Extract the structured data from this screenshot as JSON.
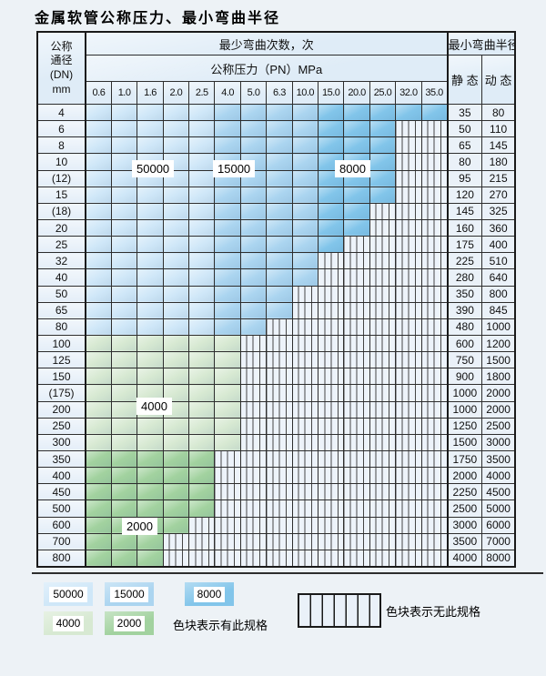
{
  "title": "金属软管公称压力、最小弯曲半径",
  "table": {
    "dn_header_lines": [
      "公称",
      "通径",
      "(DN)",
      "mm"
    ],
    "bend_cycles_header": "最少弯曲次数，次",
    "pressure_header": "公称压力（PN）MPa",
    "radius_header": "最小弯曲半径",
    "static_label": "静 态",
    "dynamic_label": "动 态",
    "pressure_columns": [
      "0.6",
      "1.0",
      "1.6",
      "2.0",
      "2.5",
      "4.0",
      "5.0",
      "6.3",
      "10.0",
      "15.0",
      "20.0",
      "25.0",
      "32.0",
      "35.0"
    ],
    "rows": [
      {
        "dn": "4",
        "colored_through": "35.0",
        "fill": "blue",
        "static": "35",
        "dynamic": "80"
      },
      {
        "dn": "6",
        "colored_through": "25.0",
        "fill": "blue",
        "static": "50",
        "dynamic": "110"
      },
      {
        "dn": "8",
        "colored_through": "25.0",
        "fill": "blue",
        "static": "65",
        "dynamic": "145"
      },
      {
        "dn": "10",
        "colored_through": "25.0",
        "fill": "blue",
        "static": "80",
        "dynamic": "180"
      },
      {
        "dn": "(12)",
        "colored_through": "25.0",
        "fill": "blue",
        "static": "95",
        "dynamic": "215"
      },
      {
        "dn": "15",
        "colored_through": "25.0",
        "fill": "blue",
        "static": "120",
        "dynamic": "270"
      },
      {
        "dn": "(18)",
        "colored_through": "20.0",
        "fill": "blue",
        "static": "145",
        "dynamic": "325"
      },
      {
        "dn": "20",
        "colored_through": "20.0",
        "fill": "blue",
        "static": "160",
        "dynamic": "360"
      },
      {
        "dn": "25",
        "colored_through": "15.0",
        "fill": "blue",
        "static": "175",
        "dynamic": "400"
      },
      {
        "dn": "32",
        "colored_through": "10.0",
        "fill": "blue",
        "static": "225",
        "dynamic": "510"
      },
      {
        "dn": "40",
        "colored_through": "10.0",
        "fill": "blue",
        "static": "280",
        "dynamic": "640"
      },
      {
        "dn": "50",
        "colored_through": "6.3",
        "fill": "blue",
        "static": "350",
        "dynamic": "800"
      },
      {
        "dn": "65",
        "colored_through": "6.3",
        "fill": "blue",
        "static": "390",
        "dynamic": "845"
      },
      {
        "dn": "80",
        "colored_through": "5.0",
        "fill": "blue",
        "static": "480",
        "dynamic": "1000"
      },
      {
        "dn": "100",
        "colored_through": "4.0",
        "fill": "4000",
        "static": "600",
        "dynamic": "1200"
      },
      {
        "dn": "125",
        "colored_through": "4.0",
        "fill": "4000",
        "static": "750",
        "dynamic": "1500"
      },
      {
        "dn": "150",
        "colored_through": "4.0",
        "fill": "4000",
        "static": "900",
        "dynamic": "1800"
      },
      {
        "dn": "(175)",
        "colored_through": "4.0",
        "fill": "4000",
        "static": "1000",
        "dynamic": "2000"
      },
      {
        "dn": "200",
        "colored_through": "4.0",
        "fill": "4000",
        "static": "1000",
        "dynamic": "2000"
      },
      {
        "dn": "250",
        "colored_through": "4.0",
        "fill": "4000",
        "static": "1250",
        "dynamic": "2500"
      },
      {
        "dn": "300",
        "colored_through": "4.0",
        "fill": "4000",
        "static": "1500",
        "dynamic": "3000"
      },
      {
        "dn": "350",
        "colored_through": "2.5",
        "fill": "2000",
        "static": "1750",
        "dynamic": "3500"
      },
      {
        "dn": "400",
        "colored_through": "2.5",
        "fill": "2000",
        "static": "2000",
        "dynamic": "4000"
      },
      {
        "dn": "450",
        "colored_through": "2.5",
        "fill": "2000",
        "static": "2250",
        "dynamic": "4500"
      },
      {
        "dn": "500",
        "colored_through": "2.5",
        "fill": "2000",
        "static": "2500",
        "dynamic": "5000"
      },
      {
        "dn": "600",
        "colored_through": "2.0",
        "fill": "2000",
        "static": "3000",
        "dynamic": "6000"
      },
      {
        "dn": "700",
        "colored_through": "1.6",
        "fill": "2000",
        "static": "3500",
        "dynamic": "7000"
      },
      {
        "dn": "800",
        "colored_through": "1.6",
        "fill": "2000",
        "static": "4000",
        "dynamic": "8000"
      }
    ]
  },
  "blue_zones": [
    {
      "through": "2.5",
      "cycles": "50000"
    },
    {
      "through": "10.0",
      "cycles": "15000"
    },
    {
      "through": "35.0",
      "cycles": "8000"
    }
  ],
  "legend": {
    "items": [
      {
        "cycles": "50000",
        "color": "#cfe7f8"
      },
      {
        "cycles": "15000",
        "color": "#abd5f0"
      },
      {
        "cycles": "8000",
        "color": "#82c5ea"
      },
      {
        "cycles": "4000",
        "color": "#d7e9d2"
      },
      {
        "cycles": "2000",
        "color": "#a2d29f"
      }
    ],
    "has_spec_text": "色块表示有此规格",
    "no_spec_text": "色块表示无此规格"
  }
}
